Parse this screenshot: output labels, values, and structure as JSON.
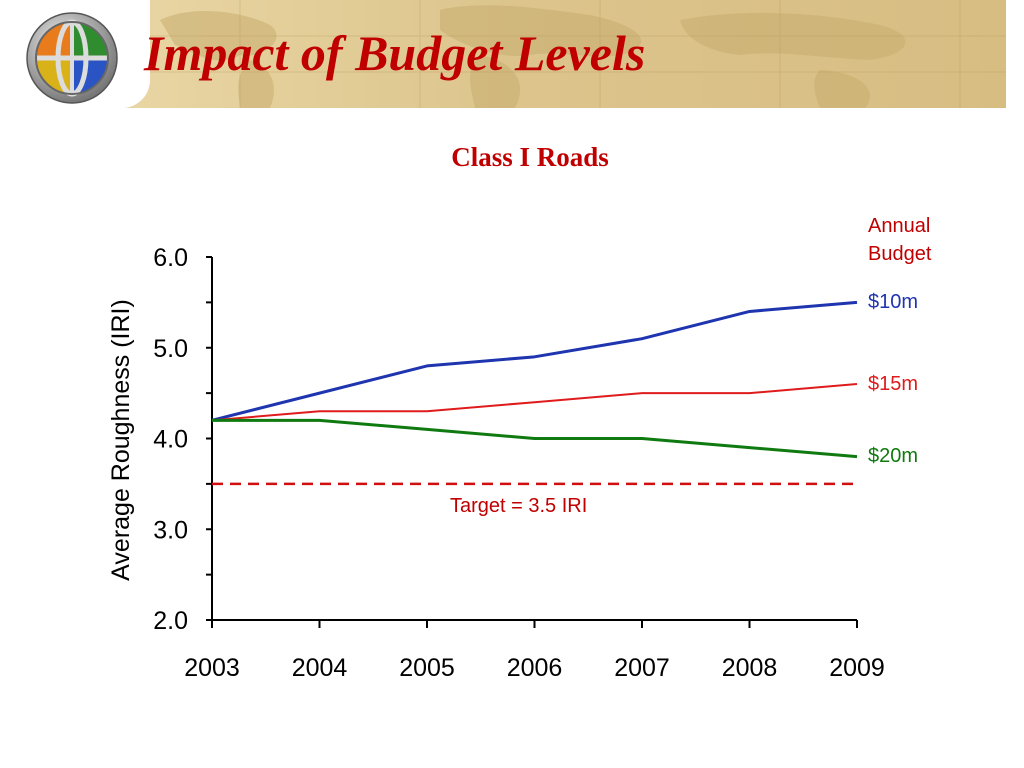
{
  "slide": {
    "title": "Impact of Budget Levels"
  },
  "chart_data": {
    "type": "line",
    "title": "Class I Roads",
    "xlabel": "",
    "ylabel": "Average Roughness (IRI)",
    "x": [
      "2003",
      "2004",
      "2005",
      "2006",
      "2007",
      "2008",
      "2009"
    ],
    "ylim": [
      2.0,
      6.0
    ],
    "y_ticks": [
      "2.0",
      "3.0",
      "4.0",
      "5.0",
      "6.0"
    ],
    "grid": false,
    "legend_title": [
      "Annual",
      "Budget"
    ],
    "legend_placement": "right",
    "series": [
      {
        "name": "$10m",
        "color": "#1f35b0",
        "values": [
          4.2,
          4.5,
          4.8,
          4.9,
          5.1,
          5.4,
          5.5
        ]
      },
      {
        "name": "$15m",
        "color": "#e01b1b",
        "values": [
          4.2,
          4.3,
          4.3,
          4.4,
          4.5,
          4.5,
          4.6
        ]
      },
      {
        "name": "$20m",
        "color": "#0f7a0f",
        "values": [
          4.2,
          4.2,
          4.1,
          4.0,
          4.0,
          3.9,
          3.8
        ]
      }
    ],
    "reference_line": {
      "value": 3.5,
      "label": "Target = 3.5 IRI",
      "color": "#d01010",
      "style": "dashed"
    }
  }
}
